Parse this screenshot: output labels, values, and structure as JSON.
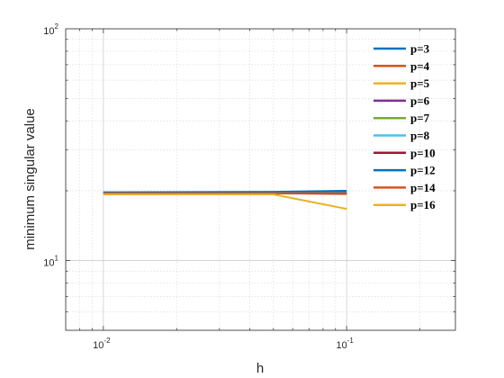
{
  "chart_data": {
    "type": "line",
    "title": "",
    "xlabel": "h",
    "ylabel": "minimum singular value",
    "xscale": "log",
    "yscale": "log",
    "xlim": [
      0.007,
      0.28
    ],
    "ylim": [
      5,
      100
    ],
    "grid": "on (major and minor, dotted)",
    "legend_placement": "top-right",
    "x_ticks": [
      {
        "base": "10",
        "exp": "-2",
        "value": 0.01
      },
      {
        "base": "10",
        "exp": "-1",
        "value": 0.1
      }
    ],
    "y_ticks": [
      {
        "base": "10",
        "exp": "1",
        "value": 10
      },
      {
        "base": "10",
        "exp": "2",
        "value": 100
      }
    ],
    "x": [
      0.01,
      0.05,
      0.1
    ],
    "series": [
      {
        "name": "p=3",
        "color": "#0072BD",
        "values": [
          19.7,
          19.8,
          20.0
        ]
      },
      {
        "name": "p=4",
        "color": "#D95319",
        "values": [
          19.6,
          19.6,
          19.5
        ]
      },
      {
        "name": "p=5",
        "color": "#EDB120",
        "values": [
          19.5,
          19.5,
          19.4
        ]
      },
      {
        "name": "p=6",
        "color": "#7E2F8E",
        "values": [
          19.6,
          19.6,
          19.6
        ]
      },
      {
        "name": "p=7",
        "color": "#77AC30",
        "values": [
          19.6,
          19.6,
          19.6
        ]
      },
      {
        "name": "p=8",
        "color": "#4DBEEE",
        "values": [
          19.6,
          19.6,
          19.6
        ]
      },
      {
        "name": "p=10",
        "color": "#A2142F",
        "values": [
          19.5,
          19.5,
          19.4
        ]
      },
      {
        "name": "p=12",
        "color": "#0072BD",
        "values": [
          19.6,
          19.6,
          19.6
        ]
      },
      {
        "name": "p=14",
        "color": "#D95319",
        "values": [
          19.5,
          19.5,
          19.5
        ]
      },
      {
        "name": "p=16",
        "color": "#EDB120",
        "values": [
          19.3,
          19.3,
          16.7
        ]
      }
    ]
  }
}
